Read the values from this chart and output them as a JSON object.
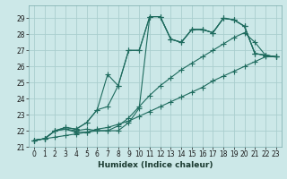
{
  "title": "",
  "xlabel": "Humidex (Indice chaleur)",
  "ylabel": "",
  "bg_color": "#cce8e8",
  "grid_color": "#aacece",
  "line_color": "#1e6b5e",
  "xlim": [
    -0.5,
    23.5
  ],
  "ylim": [
    21.0,
    29.8
  ],
  "xticks": [
    0,
    1,
    2,
    3,
    4,
    5,
    6,
    7,
    8,
    9,
    10,
    11,
    12,
    13,
    14,
    15,
    16,
    17,
    18,
    19,
    20,
    21,
    22,
    23
  ],
  "yticks": [
    21,
    22,
    23,
    24,
    25,
    26,
    27,
    28,
    29
  ],
  "series": [
    [
      21.4,
      21.5,
      22.0,
      22.1,
      22.0,
      22.1,
      22.0,
      22.0,
      22.0,
      22.5,
      23.4,
      29.1,
      29.1,
      27.7,
      27.5,
      28.3,
      28.3,
      28.1,
      29.0,
      28.9,
      28.5,
      26.8,
      26.7,
      26.6
    ],
    [
      21.4,
      21.5,
      22.0,
      22.2,
      22.1,
      22.5,
      23.3,
      25.5,
      24.8,
      27.0,
      27.0,
      29.1,
      29.1,
      27.7,
      27.5,
      28.3,
      28.3,
      28.1,
      29.0,
      28.9,
      28.5,
      26.8,
      26.7,
      26.6
    ],
    [
      21.4,
      21.5,
      22.0,
      22.2,
      22.1,
      22.5,
      23.3,
      23.5,
      24.8,
      27.0,
      27.0,
      29.1,
      29.1,
      27.7,
      27.5,
      28.3,
      28.3,
      28.1,
      29.0,
      28.9,
      28.5,
      26.8,
      26.7,
      26.6
    ],
    [
      21.4,
      21.5,
      22.0,
      22.1,
      21.9,
      21.9,
      22.0,
      22.0,
      22.3,
      22.8,
      23.5,
      24.2,
      24.8,
      25.3,
      25.8,
      26.2,
      26.6,
      27.0,
      27.4,
      27.8,
      28.1,
      27.5,
      26.7,
      26.6
    ],
    [
      21.4,
      21.5,
      21.6,
      21.7,
      21.8,
      21.9,
      22.1,
      22.2,
      22.4,
      22.6,
      22.9,
      23.2,
      23.5,
      23.8,
      24.1,
      24.4,
      24.7,
      25.1,
      25.4,
      25.7,
      26.0,
      26.3,
      26.6,
      26.6
    ]
  ],
  "tick_fontsize": 5.5,
  "xlabel_fontsize": 6.5,
  "marker_size": 2.2,
  "linewidth": 0.8
}
